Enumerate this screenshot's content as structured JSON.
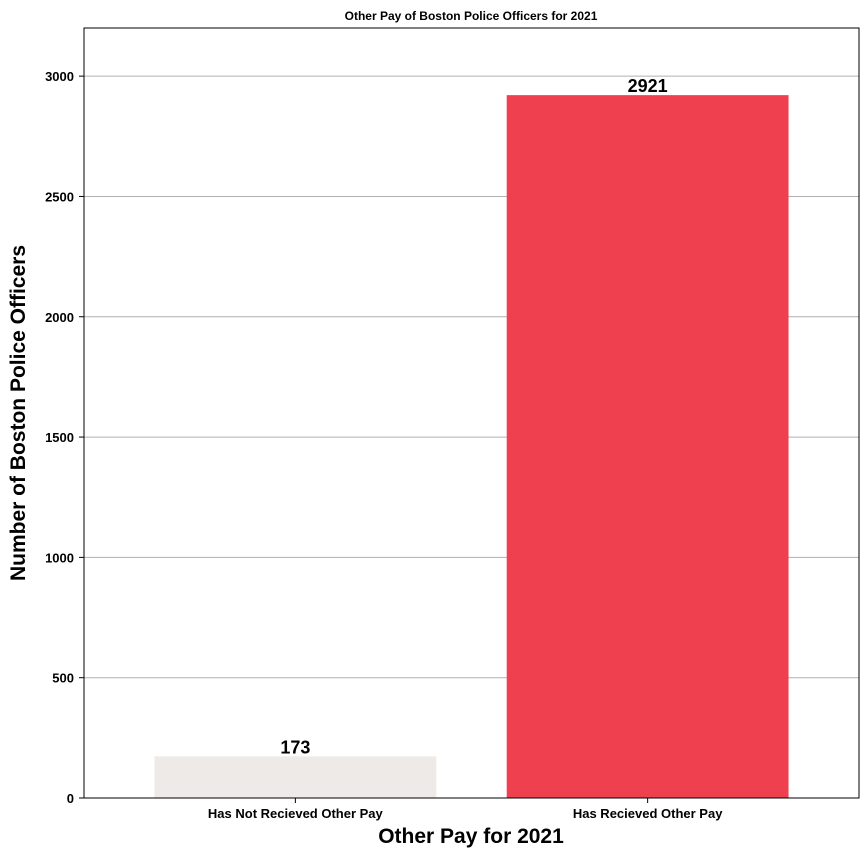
{
  "chart_data": {
    "type": "bar",
    "title": "Other Pay of Boston Police Officers for 2021",
    "xlabel": "Other Pay for 2021",
    "ylabel": "Number of Boston Police Officers",
    "categories": [
      "Has Not Recieved Other Pay",
      "Has Recieved Other Pay"
    ],
    "values": [
      173,
      2921
    ],
    "bar_labels": [
      "173",
      "2921"
    ],
    "colors": [
      "#eeeae7",
      "#ef404f"
    ],
    "ylim": [
      0,
      3200
    ],
    "yticks": [
      0,
      500,
      1000,
      1500,
      2000,
      2500,
      3000
    ],
    "ytick_labels": [
      "0",
      "500",
      "1000",
      "1500",
      "2000",
      "2500",
      "3000"
    ],
    "grid": "horizontal",
    "legend": "none"
  }
}
